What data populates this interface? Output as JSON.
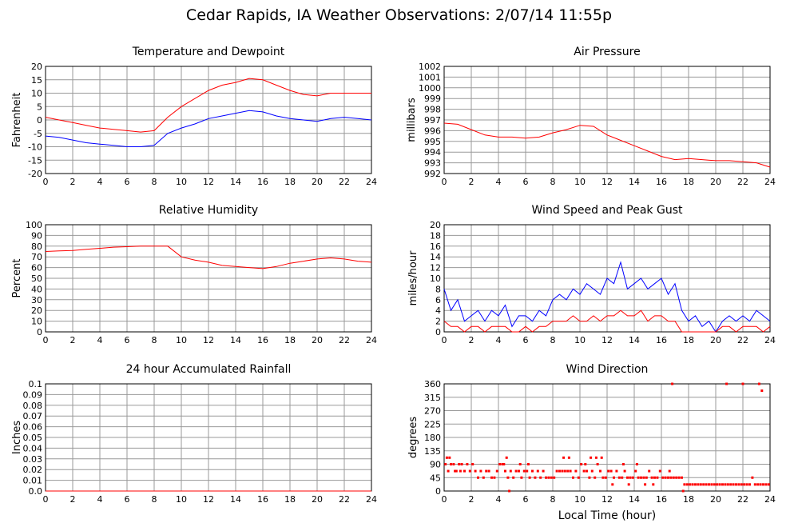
{
  "page": {
    "title": "Cedar Rapids, IA Weather Observations: 2/07/14 11:55p"
  },
  "x_axis_label": "Local Time (hour)",
  "colors": {
    "red": "#ff0000",
    "blue": "#0000ff",
    "grid": "#999999"
  },
  "chart_data": [
    {
      "id": "temp",
      "type": "line",
      "title": "Temperature and Dewpoint",
      "ylabel": "Fahrenheit",
      "xlabel": "",
      "xlim": [
        0,
        24
      ],
      "ylim": [
        -20,
        20
      ],
      "yticks": [
        -20,
        -15,
        -10,
        -5,
        0,
        5,
        10,
        15,
        20
      ],
      "xticks": [
        0,
        2,
        4,
        6,
        8,
        10,
        12,
        14,
        16,
        18,
        20,
        22,
        24
      ],
      "grid": true,
      "series": [
        {
          "color": "#ff0000",
          "x": [
            0,
            1,
            2,
            3,
            4,
            5,
            6,
            7,
            8,
            9,
            10,
            11,
            12,
            13,
            14,
            15,
            16,
            17,
            18,
            19,
            20,
            21,
            22,
            23,
            24
          ],
          "y": [
            1,
            0,
            -1,
            -2,
            -3,
            -3.5,
            -4,
            -4.5,
            -4,
            1,
            5,
            8,
            11,
            13,
            14,
            15.5,
            15,
            13,
            11,
            9.5,
            9,
            10,
            10,
            10,
            10
          ]
        },
        {
          "color": "#0000ff",
          "x": [
            0,
            1,
            2,
            3,
            4,
            5,
            6,
            7,
            8,
            9,
            10,
            11,
            12,
            13,
            14,
            15,
            16,
            17,
            18,
            19,
            20,
            21,
            22,
            23,
            24
          ],
          "y": [
            -6,
            -6.5,
            -7.5,
            -8.5,
            -9,
            -9.5,
            -10,
            -10,
            -9.5,
            -5,
            -3,
            -1.5,
            0.5,
            1.5,
            2.5,
            3.5,
            3,
            1.5,
            0.5,
            0,
            -0.5,
            0.5,
            1,
            0.5,
            0
          ]
        }
      ]
    },
    {
      "id": "pressure",
      "type": "line",
      "title": "Air Pressure",
      "ylabel": "millibars",
      "xlabel": "",
      "xlim": [
        0,
        24
      ],
      "ylim": [
        992,
        1002
      ],
      "yticks": [
        992,
        993,
        994,
        995,
        996,
        997,
        998,
        999,
        1000,
        1001,
        1002
      ],
      "xticks": [
        0,
        2,
        4,
        6,
        8,
        10,
        12,
        14,
        16,
        18,
        20,
        22,
        24
      ],
      "grid": true,
      "series": [
        {
          "color": "#ff0000",
          "x": [
            0,
            1,
            2,
            3,
            4,
            5,
            6,
            7,
            8,
            9,
            10,
            11,
            12,
            13,
            14,
            15,
            16,
            17,
            18,
            19,
            20,
            21,
            22,
            23,
            24
          ],
          "y": [
            996.7,
            996.6,
            996.1,
            995.6,
            995.4,
            995.4,
            995.3,
            995.4,
            995.8,
            996.1,
            996.5,
            996.4,
            995.6,
            995.1,
            994.6,
            994.1,
            993.6,
            993.3,
            993.4,
            993.3,
            993.2,
            993.2,
            993.1,
            993.0,
            992.6
          ]
        }
      ]
    },
    {
      "id": "humidity",
      "type": "line",
      "title": "Relative Humidity",
      "ylabel": "Percent",
      "xlabel": "",
      "xlim": [
        0,
        24
      ],
      "ylim": [
        0,
        100
      ],
      "yticks": [
        0,
        10,
        20,
        30,
        40,
        50,
        60,
        70,
        80,
        90,
        100
      ],
      "xticks": [
        0,
        2,
        4,
        6,
        8,
        10,
        12,
        14,
        16,
        18,
        20,
        22,
        24
      ],
      "grid": true,
      "series": [
        {
          "color": "#ff0000",
          "x": [
            0,
            1,
            2,
            3,
            4,
            5,
            6,
            7,
            8,
            9,
            10,
            11,
            12,
            13,
            14,
            15,
            16,
            17,
            18,
            19,
            20,
            21,
            22,
            23,
            24
          ],
          "y": [
            75,
            75.5,
            76,
            77,
            78,
            79,
            79.5,
            80,
            80,
            80,
            70,
            67,
            65,
            62,
            61,
            60,
            59,
            61,
            64,
            66,
            68,
            69,
            68,
            66,
            65
          ]
        }
      ]
    },
    {
      "id": "wind",
      "type": "line",
      "title": "Wind Speed and Peak Gust",
      "ylabel": "miles/hour",
      "xlabel": "",
      "xlim": [
        0,
        24
      ],
      "ylim": [
        0,
        20
      ],
      "yticks": [
        0,
        2,
        4,
        6,
        8,
        10,
        12,
        14,
        16,
        18,
        20
      ],
      "xticks": [
        0,
        2,
        4,
        6,
        8,
        10,
        12,
        14,
        16,
        18,
        20,
        22,
        24
      ],
      "grid": true,
      "series": [
        {
          "color": "#0000ff",
          "x": [
            0,
            0.5,
            1,
            1.5,
            2,
            2.5,
            3,
            3.5,
            4,
            4.5,
            5,
            5.5,
            6,
            6.5,
            7,
            7.5,
            8,
            8.5,
            9,
            9.5,
            10,
            10.5,
            11,
            11.5,
            12,
            12.5,
            13,
            13.5,
            14,
            14.5,
            15,
            15.5,
            16,
            16.5,
            17,
            17.5,
            18,
            18.5,
            19,
            19.5,
            20,
            20.5,
            21,
            21.5,
            22,
            22.5,
            23,
            23.5,
            24
          ],
          "y": [
            8,
            4,
            6,
            2,
            3,
            4,
            2,
            4,
            3,
            5,
            1,
            3,
            3,
            2,
            4,
            3,
            6,
            7,
            6,
            8,
            7,
            9,
            8,
            7,
            10,
            9,
            13,
            8,
            9,
            10,
            8,
            9,
            10,
            7,
            9,
            4,
            2,
            3,
            1,
            2,
            0,
            2,
            3,
            2,
            3,
            2,
            4,
            3,
            2
          ]
        },
        {
          "color": "#ff0000",
          "x": [
            0,
            0.5,
            1,
            1.5,
            2,
            2.5,
            3,
            3.5,
            4,
            4.5,
            5,
            5.5,
            6,
            6.5,
            7,
            7.5,
            8,
            8.5,
            9,
            9.5,
            10,
            10.5,
            11,
            11.5,
            12,
            12.5,
            13,
            13.5,
            14,
            14.5,
            15,
            15.5,
            16,
            16.5,
            17,
            17.5,
            18,
            18.5,
            19,
            19.5,
            20,
            20.5,
            21,
            21.5,
            22,
            22.5,
            23,
            23.5,
            24
          ],
          "y": [
            2,
            1,
            1,
            0,
            1,
            1,
            0,
            1,
            1,
            1,
            0,
            0,
            1,
            0,
            1,
            1,
            2,
            2,
            2,
            3,
            2,
            2,
            3,
            2,
            3,
            3,
            4,
            3,
            3,
            4,
            2,
            3,
            3,
            2,
            2,
            0,
            0,
            0,
            0,
            0,
            0,
            1,
            1,
            0,
            1,
            1,
            1,
            0,
            1
          ]
        }
      ]
    },
    {
      "id": "rain",
      "type": "line",
      "title": "24 hour Accumulated Rainfall",
      "ylabel": "Inches",
      "xlabel": "",
      "xlim": [
        0,
        24
      ],
      "ylim": [
        0,
        0.1
      ],
      "yticks": [
        "0.0",
        "0.01",
        "0.02",
        "0.03",
        "0.04",
        "0.05",
        "0.06",
        "0.07",
        "0.08",
        "0.09",
        "0.1"
      ],
      "xticks": [
        0,
        2,
        4,
        6,
        8,
        10,
        12,
        14,
        16,
        18,
        20,
        22,
        24
      ],
      "grid": true,
      "series": [
        {
          "color": "#ff0000",
          "x": [
            0,
            24
          ],
          "y": [
            0,
            0
          ]
        }
      ]
    },
    {
      "id": "winddir",
      "type": "scatter",
      "title": "Wind Direction",
      "ylabel": "degrees",
      "xlabel": "Local Time (hour)",
      "xlim": [
        0,
        24
      ],
      "ylim": [
        0,
        360
      ],
      "yticks": [
        0,
        45,
        90,
        135,
        180,
        225,
        270,
        315,
        360
      ],
      "xticks": [
        0,
        2,
        4,
        6,
        8,
        10,
        12,
        14,
        16,
        18,
        20,
        22,
        24
      ],
      "grid": true,
      "series": [
        {
          "color": "#ff0000",
          "x": [
            0.1,
            0.3,
            0.5,
            0.7,
            0.9,
            1.1,
            1.3,
            1.5,
            1.7,
            1.9,
            2.1,
            2.3,
            2.5,
            2.7,
            2.9,
            3.1,
            3.3,
            3.5,
            3.7,
            3.9,
            4.1,
            4.3,
            4.5,
            4.7,
            4.9,
            5.1,
            5.3,
            5.5,
            5.7,
            5.9,
            6.1,
            6.3,
            6.5,
            6.7,
            6.9,
            7.1,
            7.3,
            7.5,
            7.7,
            7.9,
            8.1,
            8.3,
            8.5,
            8.7,
            8.9,
            9.1,
            9.3,
            9.5,
            9.7,
            9.9,
            10.1,
            10.3,
            10.5,
            10.7,
            10.9,
            11.1,
            11.3,
            11.5,
            11.7,
            11.9,
            12.1,
            12.3,
            12.5,
            12.7,
            12.9,
            13.1,
            13.3,
            13.5,
            13.7,
            13.9,
            14.1,
            14.3,
            14.5,
            14.7,
            14.9,
            15.1,
            15.3,
            15.5,
            15.7,
            15.9,
            16.1,
            16.3,
            16.5,
            16.7,
            16.9,
            17.1,
            17.3,
            17.5,
            17.7,
            17.9,
            18.1,
            18.3,
            18.5,
            18.7,
            18.9,
            19.1,
            19.3,
            19.5,
            19.7,
            19.9,
            20.1,
            20.3,
            20.5,
            20.7,
            20.9,
            21.1,
            21.3,
            21.5,
            21.7,
            21.9,
            22.1,
            22.3,
            22.5,
            22.7,
            22.9,
            23.1,
            23.3,
            23.5,
            23.7,
            23.9,
            0.2,
            0.4,
            0.8,
            1.2,
            4.4,
            4.6,
            4.8,
            5.6,
            6.2,
            8.8,
            9.2,
            10.4,
            10.8,
            11.2,
            11.6,
            12.4,
            13.2,
            13.6,
            14.2,
            14.8,
            15.4,
            16.6,
            17.6,
            16.8,
            20.8,
            22.0,
            23.2,
            23.4
          ],
          "y": [
            90,
            67,
            90,
            90,
            67,
            90,
            90,
            67,
            90,
            67,
            90,
            67,
            45,
            67,
            45,
            67,
            67,
            45,
            45,
            67,
            90,
            90,
            67,
            45,
            67,
            45,
            67,
            67,
            45,
            67,
            67,
            45,
            67,
            45,
            67,
            45,
            67,
            45,
            45,
            45,
            45,
            67,
            67,
            67,
            67,
            67,
            67,
            45,
            67,
            45,
            90,
            67,
            67,
            45,
            67,
            45,
            90,
            67,
            45,
            45,
            67,
            67,
            45,
            67,
            45,
            45,
            67,
            45,
            45,
            45,
            67,
            45,
            45,
            45,
            45,
            67,
            45,
            45,
            45,
            67,
            45,
            45,
            45,
            45,
            45,
            45,
            45,
            45,
            22,
            22,
            22,
            22,
            22,
            22,
            22,
            22,
            22,
            22,
            22,
            22,
            22,
            22,
            22,
            22,
            22,
            22,
            22,
            22,
            22,
            22,
            22,
            22,
            22,
            45,
            22,
            22,
            22,
            22,
            22,
            22,
            112,
            112,
            67,
            67,
            90,
            112,
            0,
            90,
            90,
            112,
            112,
            90,
            112,
            112,
            112,
            22,
            90,
            22,
            90,
            22,
            22,
            67,
            0,
            360,
            360,
            360,
            360,
            337
          ]
        }
      ]
    }
  ]
}
